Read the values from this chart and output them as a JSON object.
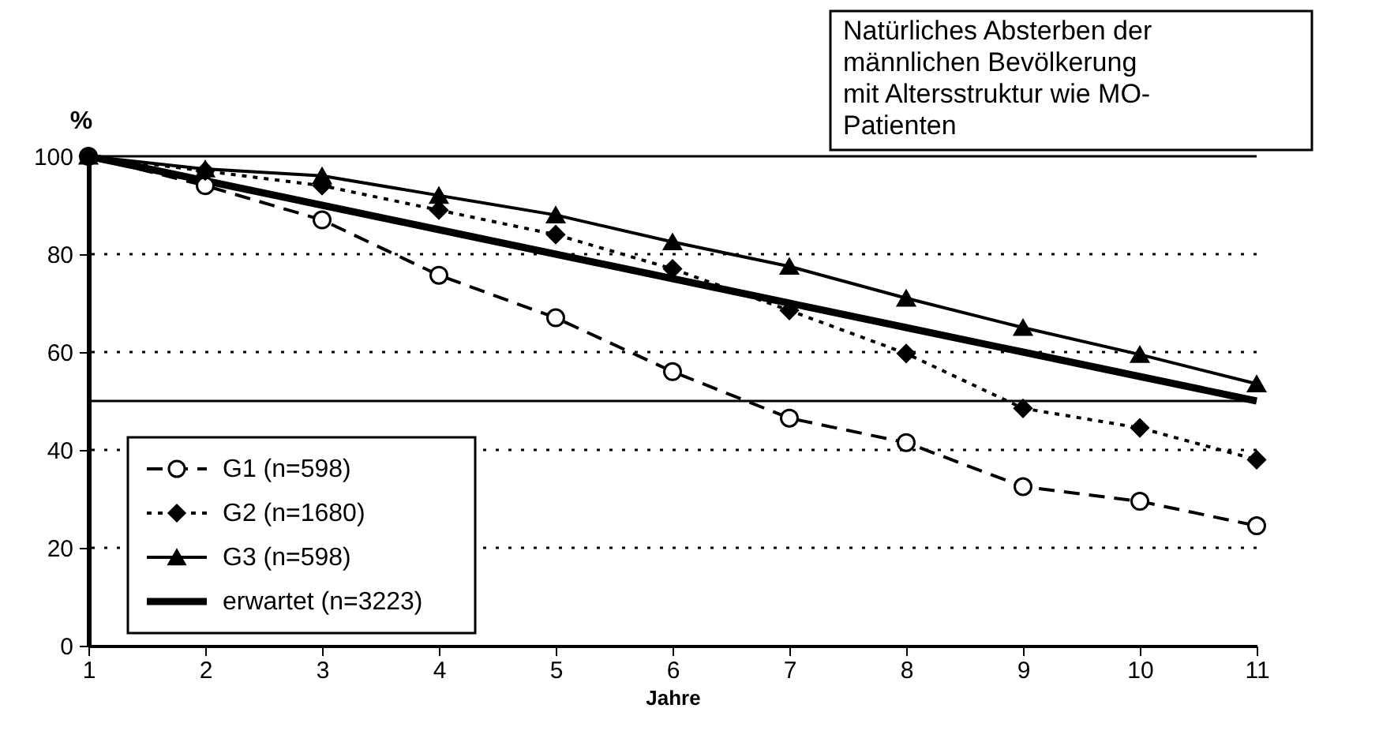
{
  "chart_data": {
    "type": "line",
    "xlabel": "Jahre",
    "ylabel": "%",
    "x": [
      1,
      2,
      3,
      4,
      5,
      6,
      7,
      8,
      9,
      10,
      11
    ],
    "xlim": [
      1,
      11
    ],
    "xticks": [
      1,
      2,
      3,
      4,
      5,
      6,
      7,
      8,
      9,
      10,
      11
    ],
    "ylim": [
      0,
      100
    ],
    "yticks": [
      0,
      20,
      40,
      60,
      80,
      100
    ],
    "grid": "y",
    "legend": "bottom left",
    "series": [
      {
        "name": "G1 (n=598)",
        "color": "#000000",
        "marker": "circle",
        "line_style": "dashed",
        "values": [
          100,
          94,
          87,
          75.7,
          67,
          56,
          46.5,
          41.5,
          32.5,
          29.5,
          24.5
        ]
      },
      {
        "name": "G2 (n=1680)",
        "color": "#000000",
        "marker": "diamond",
        "line_style": "dotted",
        "values": [
          100,
          97,
          94,
          89,
          84,
          77,
          68.5,
          59.7,
          48.5,
          44.5,
          38
        ]
      },
      {
        "name": "G3 (n=598)",
        "color": "#000000",
        "marker": "triangle",
        "line_style": "solid",
        "values": [
          100,
          97.4,
          96,
          92,
          88,
          82.5,
          77.5,
          71,
          65,
          59.5,
          53.5
        ]
      },
      {
        "name": "erwartet (n=3223)",
        "color": "#000000",
        "marker": "none",
        "line_style": "solid",
        "values": [
          100,
          95,
          90,
          85,
          80,
          75,
          70,
          65,
          60,
          55,
          50
        ]
      }
    ],
    "ref_lines": [
      {
        "axis": "y",
        "value": 50,
        "label": null,
        "line_style": "solid"
      },
      {
        "axis": "y",
        "value": 100,
        "label": null,
        "line_style": "solid"
      }
    ],
    "annotations": [
      "Natürliches Absterben der\nmännlichen Bevölkerung\nmit Altersstruktur wie MO-\nPatienten"
    ]
  }
}
